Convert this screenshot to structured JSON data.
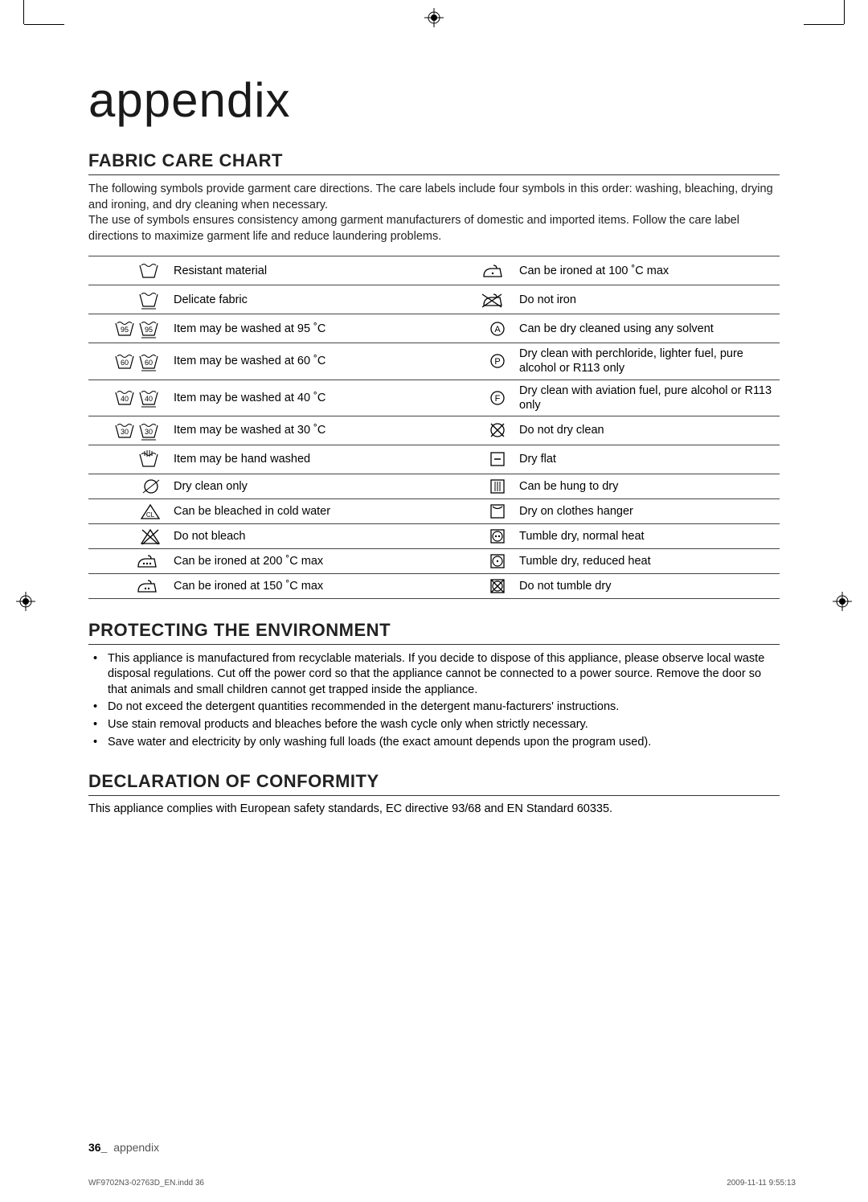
{
  "main_title": "appendix",
  "section1": {
    "title": "FABRIC CARE CHART",
    "intro": "The following symbols provide garment care directions. The care labels include four symbols in this order: washing, bleaching, drying and ironing, and dry cleaning when necessary.\nThe use of symbols ensures consistency among garment manufacturers of domestic and imported items. Follow the care label directions to maximize garment life and reduce laundering problems."
  },
  "chart": {
    "left": [
      {
        "icon": "tub-strong",
        "label": "Resistant material"
      },
      {
        "icon": "tub-delicate",
        "label": "Delicate fabric"
      },
      {
        "icon": "tub-95",
        "label": "Item may be washed at 95 ˚C"
      },
      {
        "icon": "tub-60",
        "label": "Item may be washed at 60 ˚C"
      },
      {
        "icon": "tub-40",
        "label": "Item may be washed at 40 ˚C"
      },
      {
        "icon": "tub-30",
        "label": "Item may be washed at 30 ˚C"
      },
      {
        "icon": "hand-wash",
        "label": "Item may be hand washed"
      },
      {
        "icon": "dryclean-only",
        "label": "Dry clean only"
      },
      {
        "icon": "bleach-ok",
        "label": "Can be bleached in cold water"
      },
      {
        "icon": "no-bleach",
        "label": "Do not bleach"
      },
      {
        "icon": "iron-200",
        "label": "Can be ironed at 200 ˚C max"
      },
      {
        "icon": "iron-150",
        "label": "Can be ironed at 150 ˚C max"
      }
    ],
    "right": [
      {
        "icon": "iron-100",
        "label": "Can be ironed at 100 ˚C max"
      },
      {
        "icon": "no-iron",
        "label": "Do not iron"
      },
      {
        "icon": "dryclean-a",
        "label": "Can be dry cleaned using any solvent"
      },
      {
        "icon": "dryclean-p",
        "label": "Dry clean with perchloride, lighter fuel, pure alcohol or R113 only"
      },
      {
        "icon": "dryclean-f",
        "label": "Dry clean with aviation fuel, pure alcohol or R113 only"
      },
      {
        "icon": "no-dryclean",
        "label": "Do not dry clean"
      },
      {
        "icon": "dry-flat",
        "label": "Dry flat"
      },
      {
        "icon": "hang-dry",
        "label": "Can be hung to dry"
      },
      {
        "icon": "clothes-hanger",
        "label": "Dry on clothes hanger"
      },
      {
        "icon": "tumble-normal",
        "label": "Tumble dry, normal heat"
      },
      {
        "icon": "tumble-reduced",
        "label": "Tumble dry, reduced heat"
      },
      {
        "icon": "no-tumble",
        "label": "Do not tumble dry"
      }
    ]
  },
  "section2": {
    "title": "PROTECTING THE ENVIRONMENT",
    "items": [
      "This appliance is manufactured from recyclable materials. If you decide to dispose of this appliance, please observe local waste disposal regulations. Cut off the power cord so that the appliance cannot be connected to a power source. Remove the door so that animals and small children cannot get trapped inside the appliance.",
      "Do not exceed the detergent quantities recommended in the detergent manu-facturers' instructions.",
      "Use stain removal products and bleaches before the wash cycle only when strictly necessary.",
      "Save water and electricity by only washing full loads (the exact amount depends upon the program used)."
    ]
  },
  "section3": {
    "title": "DECLARATION OF CONFORMITY",
    "text": "This appliance complies with European safety standards, EC directive 93/68 and EN Standard 60335."
  },
  "footer": {
    "page": "36_",
    "section": "appendix"
  },
  "printline": {
    "left": "WF9702N3-02763D_EN.indd   36",
    "right": "2009-11-11   9:55:13"
  },
  "colors": {
    "rule": "#333333",
    "text": "#222222"
  }
}
